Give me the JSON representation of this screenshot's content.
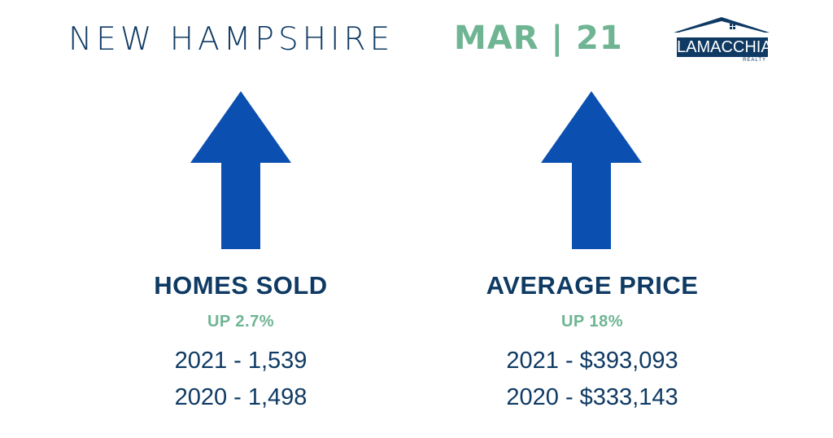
{
  "header": {
    "state": "NEW HAMPSHIRE",
    "date": "MAR | 21"
  },
  "logo": {
    "name": "LAMACCHIA",
    "sub": "REALTY"
  },
  "colors": {
    "navy": "#0f3a63",
    "green": "#6fb594",
    "arrow_blue": "#0b50b0"
  },
  "metrics": [
    {
      "title": "HOMES SOLD",
      "change": "UP 2.7%",
      "line1": "2021 - 1,539",
      "line2": "2020 - 1,498",
      "direction": "up"
    },
    {
      "title": "AVERAGE PRICE",
      "change": "UP 18%",
      "line1": "2021 - $393,093",
      "line2": "2020 - $333,143",
      "direction": "up"
    }
  ]
}
